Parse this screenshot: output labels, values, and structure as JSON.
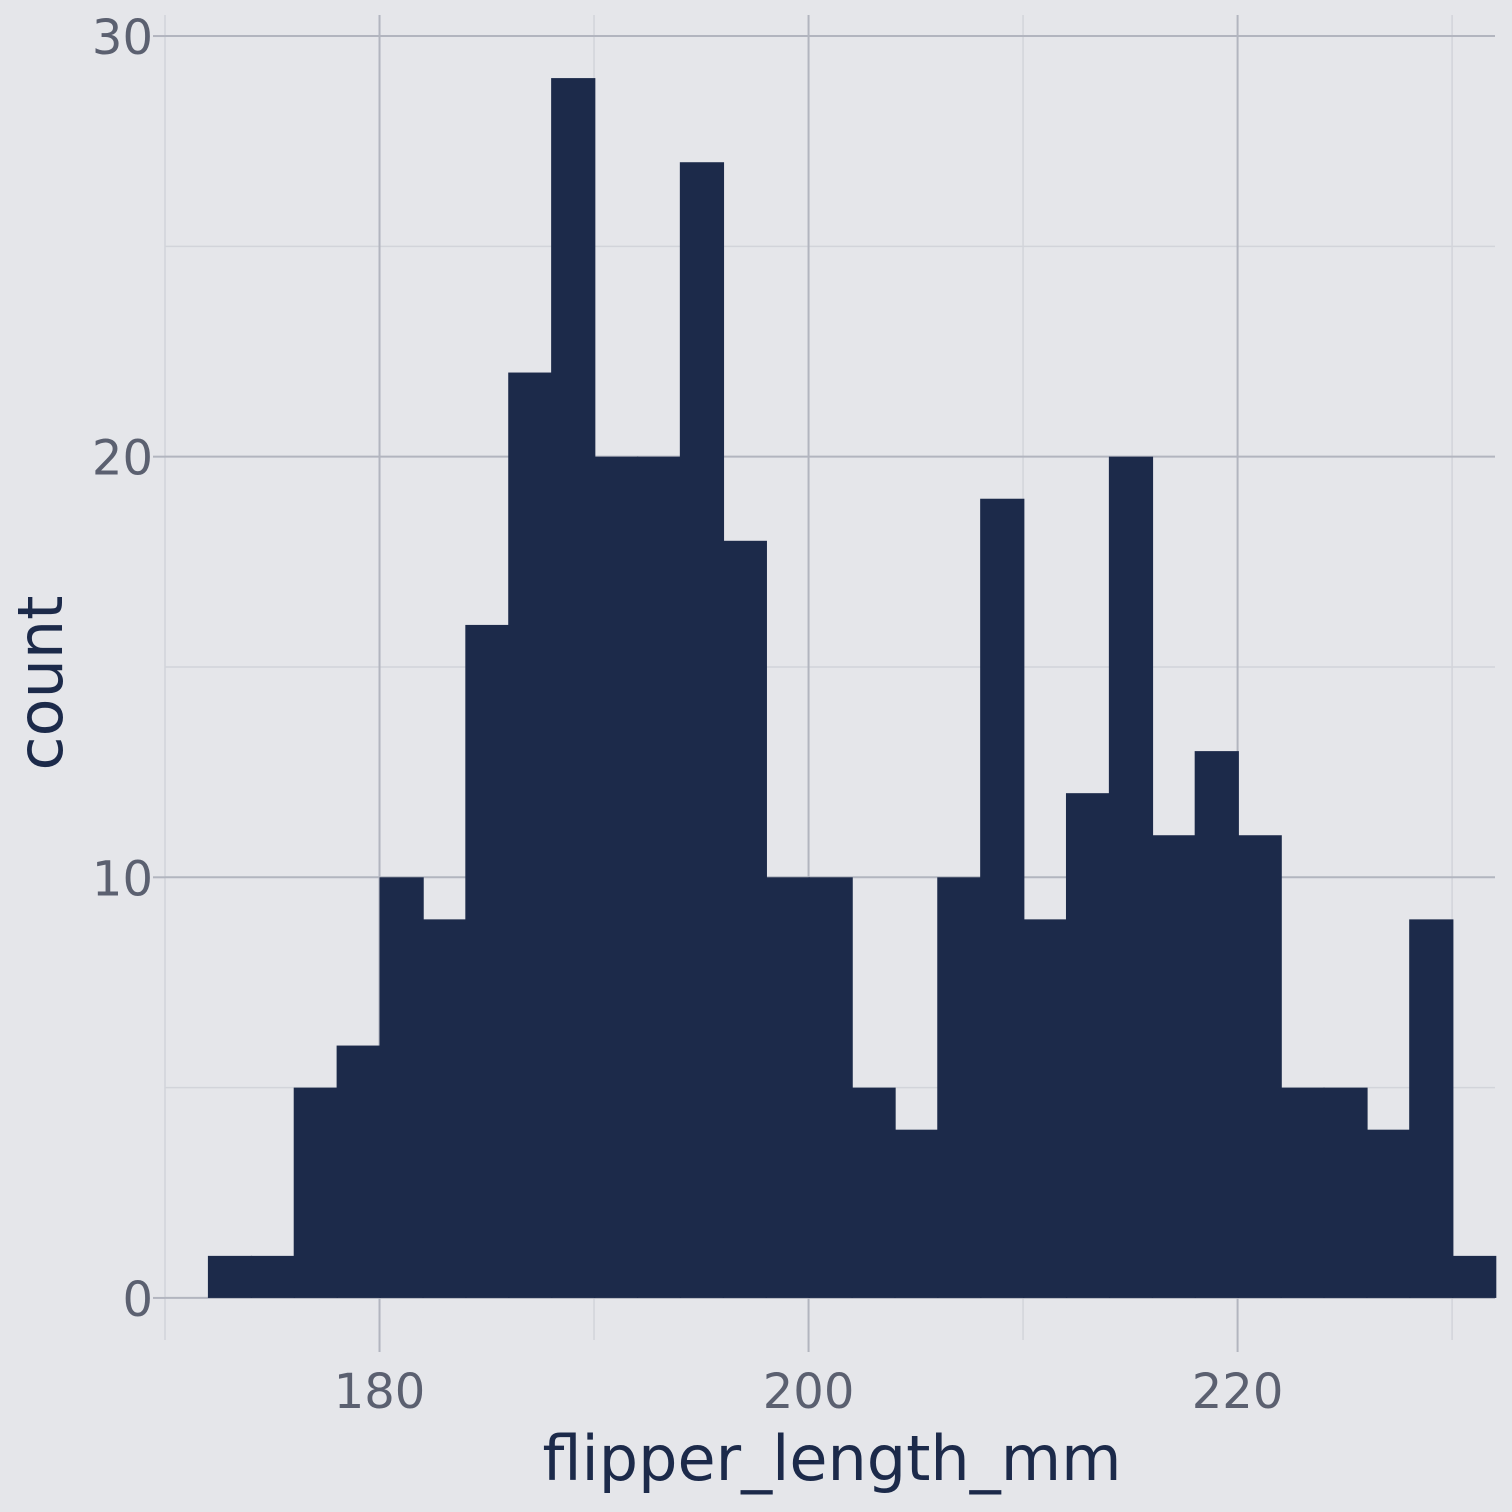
{
  "chart_data": {
    "type": "bar",
    "title": "",
    "xlabel": "flipper_length_mm",
    "ylabel": "count",
    "bar_color": "#1c2a4a",
    "background": "#e5e6ea",
    "grid": true,
    "x_ticks": [
      180,
      200,
      220
    ],
    "y_ticks": [
      0,
      10,
      20,
      30
    ],
    "xlim": [
      170,
      232
    ],
    "ylim": [
      -1,
      30.5
    ],
    "bin_width": 2.0333,
    "bins": [
      {
        "x0": 172,
        "count": 1
      },
      {
        "x0": 174,
        "count": 1
      },
      {
        "x0": 176,
        "count": 5
      },
      {
        "x0": 178,
        "count": 6
      },
      {
        "x0": 180,
        "count": 10
      },
      {
        "x0": 182,
        "count": 9
      },
      {
        "x0": 184,
        "count": 16
      },
      {
        "x0": 186,
        "count": 22
      },
      {
        "x0": 188,
        "count": 29
      },
      {
        "x0": 190,
        "count": 20
      },
      {
        "x0": 192,
        "count": 20
      },
      {
        "x0": 194,
        "count": 27
      },
      {
        "x0": 196,
        "count": 18
      },
      {
        "x0": 198,
        "count": 10
      },
      {
        "x0": 200,
        "count": 10
      },
      {
        "x0": 202,
        "count": 5
      },
      {
        "x0": 204,
        "count": 4
      },
      {
        "x0": 206,
        "count": 10
      },
      {
        "x0": 208,
        "count": 19
      },
      {
        "x0": 210,
        "count": 9
      },
      {
        "x0": 212,
        "count": 12
      },
      {
        "x0": 214,
        "count": 20
      },
      {
        "x0": 216,
        "count": 11
      },
      {
        "x0": 218,
        "count": 13
      },
      {
        "x0": 220,
        "count": 11
      },
      {
        "x0": 222,
        "count": 5
      },
      {
        "x0": 224,
        "count": 5
      },
      {
        "x0": 226,
        "count": 4
      },
      {
        "x0": 228,
        "count": 9
      },
      {
        "x0": 230,
        "count": 1
      }
    ]
  }
}
